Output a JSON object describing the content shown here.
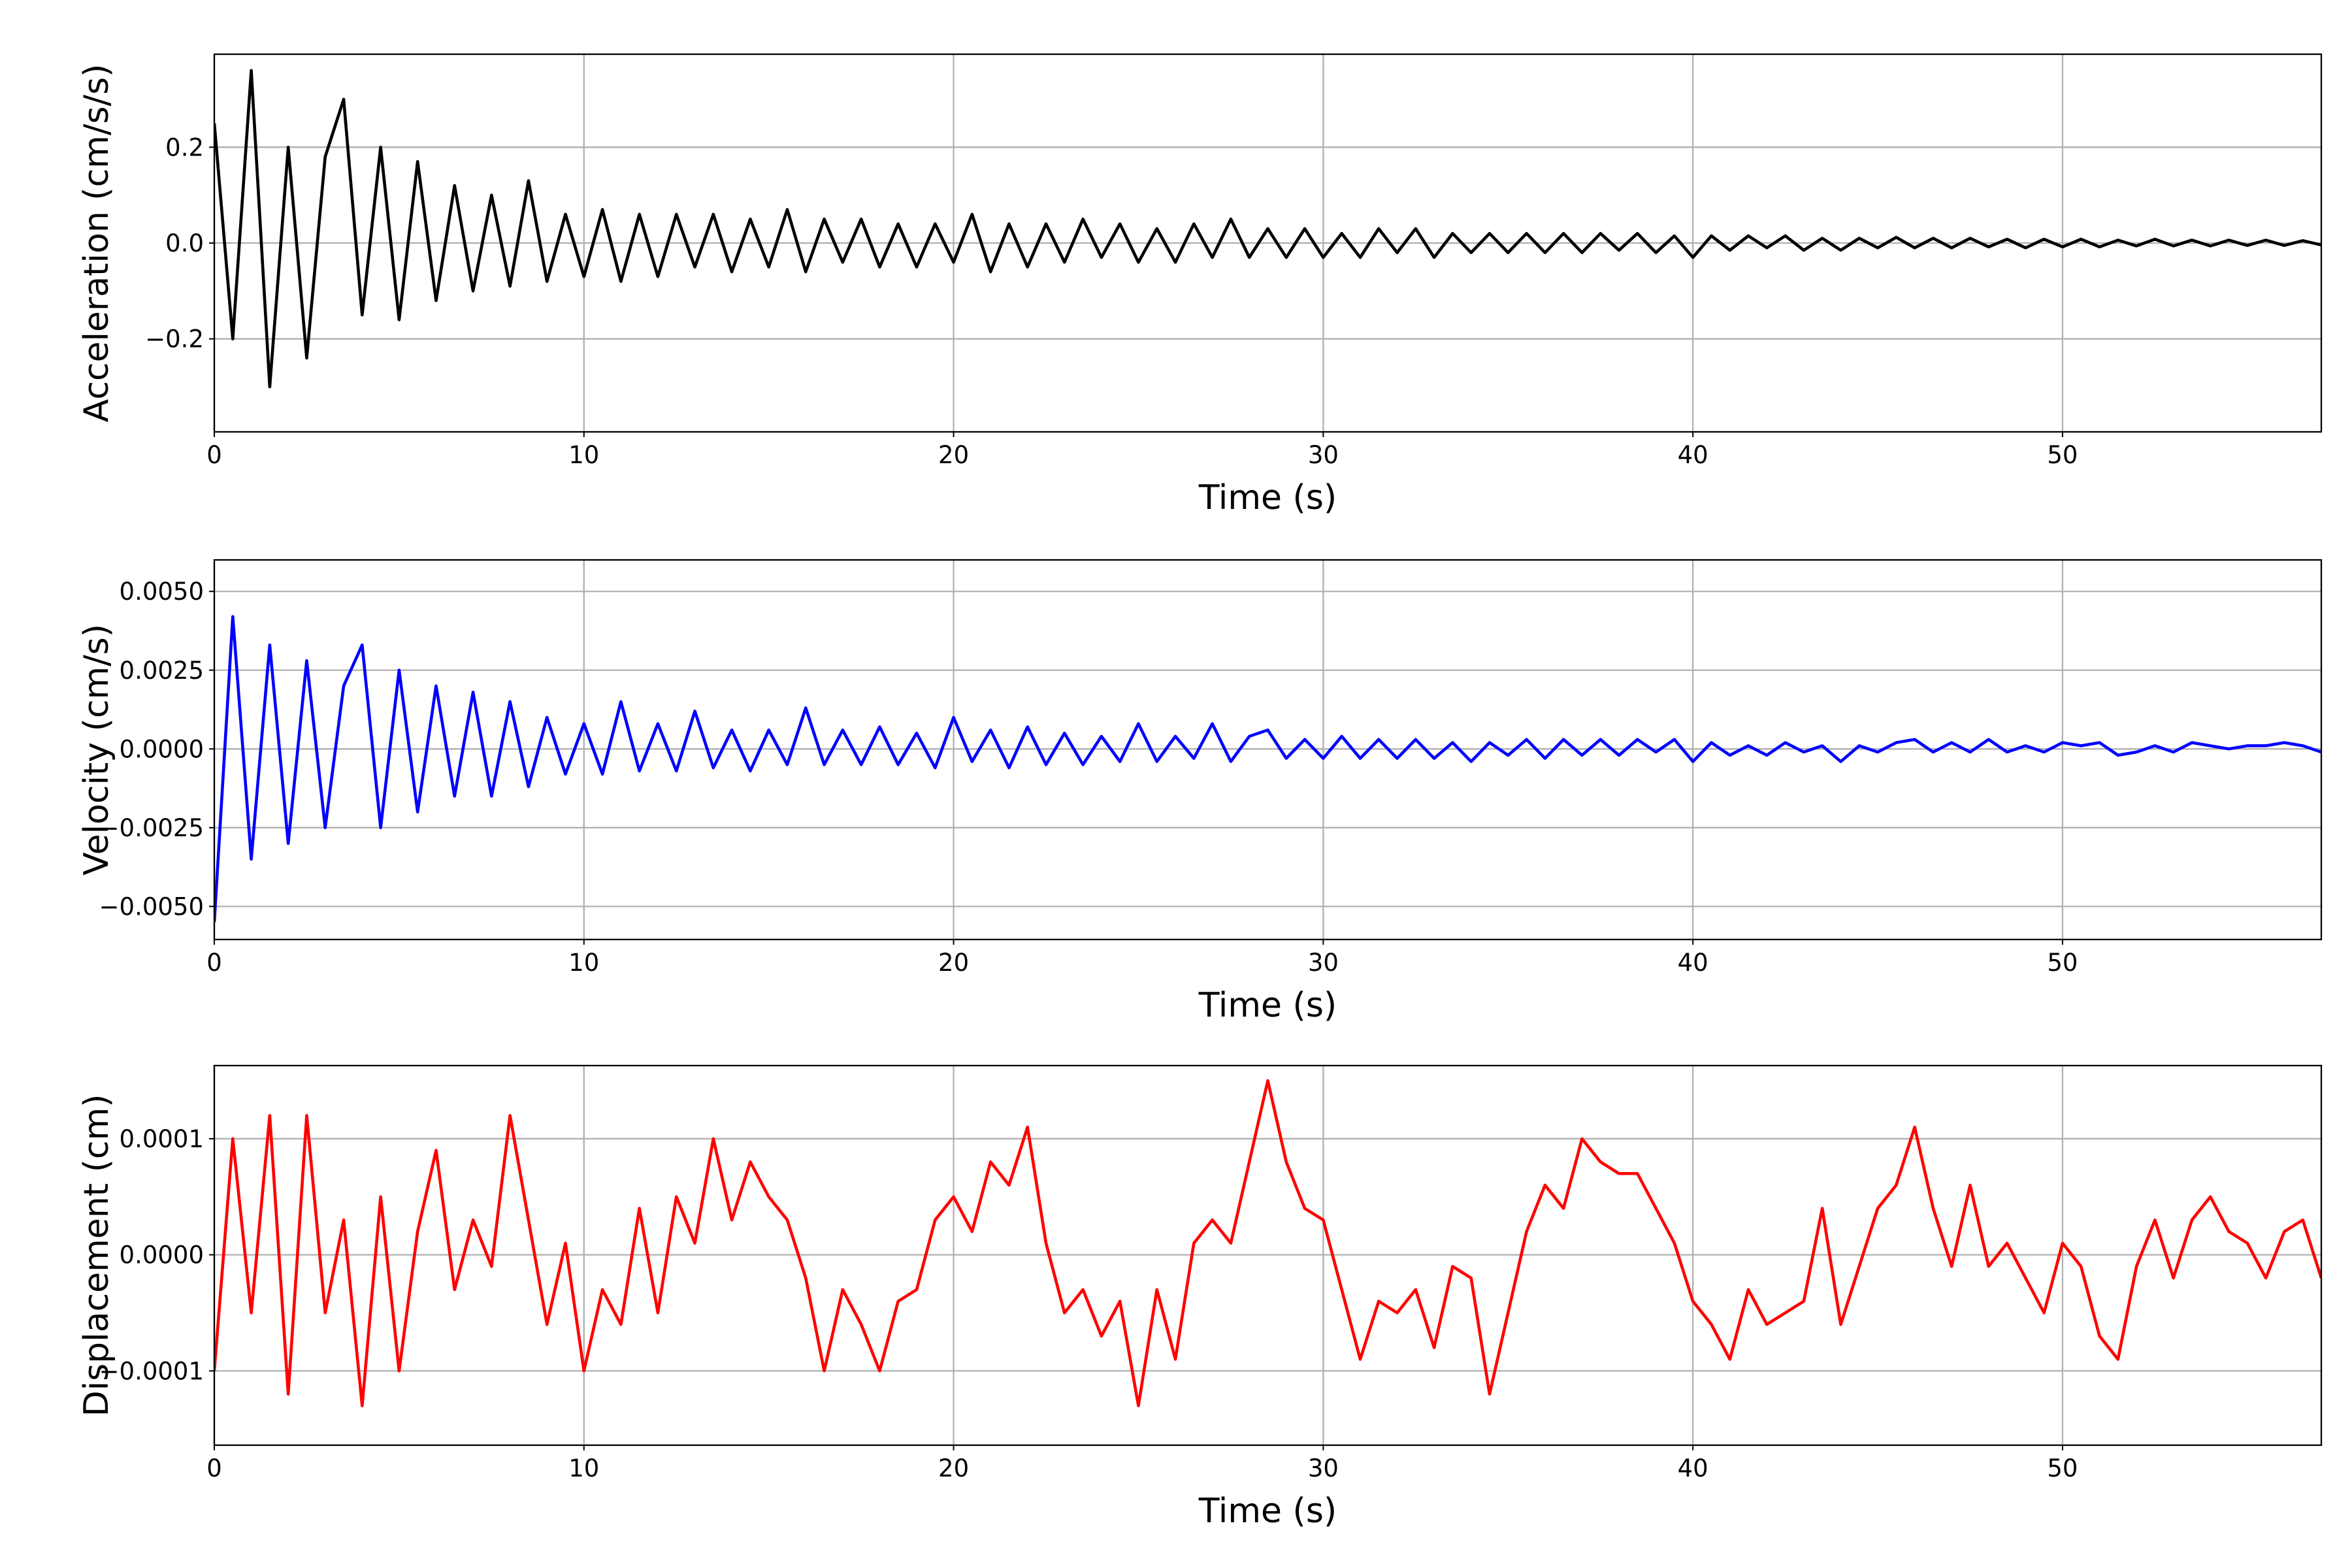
{
  "chart_data": [
    {
      "type": "line",
      "ylabel": "Acceleration (cm/s/s)",
      "xlabel": "Time (s)",
      "color": "#000000",
      "grid": true,
      "xlim": [
        0,
        57
      ],
      "xticks": [
        0,
        10,
        20,
        30,
        40,
        50
      ],
      "ylim": [
        -0.394,
        0.394
      ],
      "yticks": [
        {
          "value": -0.2,
          "label": "−0.2"
        },
        {
          "value": 0,
          "label": "0.0"
        },
        {
          "value": 0.2,
          "label": "0.2"
        }
      ],
      "x": [
        0,
        0.5,
        1,
        1.5,
        2,
        2.5,
        3,
        3.5,
        4,
        4.5,
        5,
        5.5,
        6,
        6.5,
        7,
        7.5,
        8,
        8.5,
        9,
        9.5,
        10,
        10.5,
        11,
        11.5,
        12,
        12.5,
        13,
        13.5,
        14,
        14.5,
        15,
        15.5,
        16,
        16.5,
        17,
        17.5,
        18,
        18.5,
        19,
        19.5,
        20,
        20.5,
        21,
        21.5,
        22,
        22.5,
        23,
        23.5,
        24,
        24.5,
        25,
        25.5,
        26,
        26.5,
        27,
        27.5,
        28,
        28.5,
        29,
        29.5,
        30,
        30.5,
        31,
        31.5,
        32,
        32.5,
        33,
        33.5,
        34,
        34.5,
        35,
        35.5,
        36,
        36.5,
        37,
        37.5,
        38,
        38.5,
        39,
        39.5,
        40,
        40.5,
        41,
        41.5,
        42,
        42.5,
        43,
        43.5,
        44,
        44.5,
        45,
        45.5,
        46,
        46.5,
        47,
        47.5,
        48,
        48.5,
        49,
        49.5,
        50,
        50.5,
        51,
        51.5,
        52,
        52.5,
        53,
        53.5,
        54,
        54.5,
        55,
        55.5,
        56,
        56.5,
        57
      ],
      "values": [
        0.25,
        -0.2,
        0.36,
        -0.3,
        0.2,
        -0.24,
        0.18,
        0.3,
        -0.15,
        0.2,
        -0.16,
        0.17,
        -0.12,
        0.12,
        -0.1,
        0.1,
        -0.09,
        0.13,
        -0.08,
        0.06,
        -0.07,
        0.07,
        -0.08,
        0.06,
        -0.07,
        0.06,
        -0.05,
        0.06,
        -0.06,
        0.05,
        -0.05,
        0.07,
        -0.06,
        0.05,
        -0.04,
        0.05,
        -0.05,
        0.04,
        -0.05,
        0.04,
        -0.04,
        0.06,
        -0.06,
        0.04,
        -0.05,
        0.04,
        -0.04,
        0.05,
        -0.03,
        0.04,
        -0.04,
        0.03,
        -0.04,
        0.04,
        -0.03,
        0.05,
        -0.03,
        0.03,
        -0.03,
        0.03,
        -0.03,
        0.02,
        -0.03,
        0.03,
        -0.02,
        0.03,
        -0.03,
        0.02,
        -0.02,
        0.02,
        -0.02,
        0.02,
        -0.02,
        0.02,
        -0.02,
        0.02,
        -0.015,
        0.02,
        -0.02,
        0.015,
        -0.03,
        0.015,
        -0.015,
        0.015,
        -0.01,
        0.015,
        -0.015,
        0.01,
        -0.015,
        0.01,
        -0.01,
        0.012,
        -0.01,
        0.01,
        -0.01,
        0.01,
        -0.008,
        0.008,
        -0.01,
        0.008,
        -0.008,
        0.008,
        -0.008,
        0.006,
        -0.006,
        0.008,
        -0.006,
        0.006,
        -0.006,
        0.006,
        -0.005,
        0.006,
        -0.005,
        0.005,
        -0.004
      ]
    },
    {
      "type": "line",
      "ylabel": "Velocity (cm/s)",
      "xlabel": "Time (s)",
      "color": "#0000ff",
      "grid": true,
      "xlim": [
        0,
        57
      ],
      "xticks": [
        0,
        10,
        20,
        30,
        40,
        50
      ],
      "ylim": [
        -0.00605,
        0.006
      ],
      "yticks": [
        {
          "value": -0.005,
          "label": "−0.0050"
        },
        {
          "value": -0.0025,
          "label": "−0.0025"
        },
        {
          "value": 0,
          "label": "0.0000"
        },
        {
          "value": 0.0025,
          "label": "0.0025"
        },
        {
          "value": 0.005,
          "label": "0.0050"
        }
      ],
      "x": [
        0,
        0.5,
        1,
        1.5,
        2,
        2.5,
        3,
        3.5,
        4,
        4.5,
        5,
        5.5,
        6,
        6.5,
        7,
        7.5,
        8,
        8.5,
        9,
        9.5,
        10,
        10.5,
        11,
        11.5,
        12,
        12.5,
        13,
        13.5,
        14,
        14.5,
        15,
        15.5,
        16,
        16.5,
        17,
        17.5,
        18,
        18.5,
        19,
        19.5,
        20,
        20.5,
        21,
        21.5,
        22,
        22.5,
        23,
        23.5,
        24,
        24.5,
        25,
        25.5,
        26,
        26.5,
        27,
        27.5,
        28,
        28.5,
        29,
        29.5,
        30,
        30.5,
        31,
        31.5,
        32,
        32.5,
        33,
        33.5,
        34,
        34.5,
        35,
        35.5,
        36,
        36.5,
        37,
        37.5,
        38,
        38.5,
        39,
        39.5,
        40,
        40.5,
        41,
        41.5,
        42,
        42.5,
        43,
        43.5,
        44,
        44.5,
        45,
        45.5,
        46,
        46.5,
        47,
        47.5,
        48,
        48.5,
        49,
        49.5,
        50,
        50.5,
        51,
        51.5,
        52,
        52.5,
        53,
        53.5,
        54,
        54.5,
        55,
        55.5,
        56,
        56.5,
        57
      ],
      "values": [
        -0.0055,
        0.0042,
        -0.0035,
        0.0033,
        -0.003,
        0.0028,
        -0.0025,
        0.002,
        0.0033,
        -0.0025,
        0.0025,
        -0.002,
        0.002,
        -0.0015,
        0.0018,
        -0.0015,
        0.0015,
        -0.0012,
        0.001,
        -0.0008,
        0.0008,
        -0.0008,
        0.0015,
        -0.0007,
        0.0008,
        -0.0007,
        0.0012,
        -0.0006,
        0.0006,
        -0.0007,
        0.0006,
        -0.0005,
        0.0013,
        -0.0005,
        0.0006,
        -0.0005,
        0.0007,
        -0.0005,
        0.0005,
        -0.0006,
        0.001,
        -0.0004,
        0.0006,
        -0.0006,
        0.0007,
        -0.0005,
        0.0005,
        -0.0005,
        0.0004,
        -0.0004,
        0.0008,
        -0.0004,
        0.0004,
        -0.0003,
        0.0008,
        -0.0004,
        0.0004,
        0.0006,
        -0.0003,
        0.0003,
        -0.0003,
        0.0004,
        -0.0003,
        0.0003,
        -0.0003,
        0.0003,
        -0.0003,
        0.0002,
        -0.0004,
        0.0002,
        -0.0002,
        0.0003,
        -0.0003,
        0.0003,
        -0.0002,
        0.0003,
        -0.0002,
        0.0003,
        -0.0001,
        0.0003,
        -0.0004,
        0.0002,
        -0.0002,
        0.0001,
        -0.0002,
        0.0002,
        -0.0001,
        0.0001,
        -0.0004,
        0.0001,
        -0.0001,
        0.0002,
        0.0003,
        -0.0001,
        0.0002,
        -0.0001,
        0.0003,
        -0.0001,
        0.0001,
        -0.0001,
        0.0002,
        0.0001,
        0.0002,
        -0.0002,
        -0.0001,
        0.0001,
        -0.0001,
        0.0002,
        0.0001,
        0,
        0.0001,
        0.0001,
        0.0002,
        0.0001,
        -0.0001
      ]
    },
    {
      "type": "line",
      "ylabel": "Displacement (cm)",
      "xlabel": "Time (s)",
      "color": "#ff0000",
      "grid": true,
      "xlim": [
        0,
        57
      ],
      "xticks": [
        0,
        10,
        20,
        30,
        40,
        50
      ],
      "ylim": [
        -0.000164,
        0.000163
      ],
      "yticks": [
        {
          "value": -0.0001,
          "label": "−0.0001"
        },
        {
          "value": 0,
          "label": "0.0000"
        },
        {
          "value": 0.0001,
          "label": "0.0001"
        }
      ],
      "x": [
        0,
        0.5,
        1,
        1.5,
        2,
        2.5,
        3,
        3.5,
        4,
        4.5,
        5,
        5.5,
        6,
        6.5,
        7,
        7.5,
        8,
        8.5,
        9,
        9.5,
        10,
        10.5,
        11,
        11.5,
        12,
        12.5,
        13,
        13.5,
        14,
        14.5,
        15,
        15.5,
        16,
        16.5,
        17,
        17.5,
        18,
        18.5,
        19,
        19.5,
        20,
        20.5,
        21,
        21.5,
        22,
        22.5,
        23,
        23.5,
        24,
        24.5,
        25,
        25.5,
        26,
        26.5,
        27,
        27.5,
        28,
        28.5,
        29,
        29.5,
        30,
        30.5,
        31,
        31.5,
        32,
        32.5,
        33,
        33.5,
        34,
        34.5,
        35,
        35.5,
        36,
        36.5,
        37,
        37.5,
        38,
        38.5,
        39,
        39.5,
        40,
        40.5,
        41,
        41.5,
        42,
        42.5,
        43,
        43.5,
        44,
        44.5,
        45,
        45.5,
        46,
        46.5,
        47,
        47.5,
        48,
        48.5,
        49,
        49.5,
        50,
        50.5,
        51,
        51.5,
        52,
        52.5,
        53,
        53.5,
        54,
        54.5,
        55,
        55.5,
        56,
        56.5,
        57
      ],
      "values": [
        -0.0001,
        0.0001,
        -5e-05,
        0.00012,
        -0.00012,
        0.00012,
        -5e-05,
        3e-05,
        -0.00013,
        5e-05,
        -0.0001,
        2e-05,
        9e-05,
        -3e-05,
        3e-05,
        -1e-05,
        0.00012,
        3e-05,
        -6e-05,
        1e-05,
        -0.0001,
        -3e-05,
        -6e-05,
        4e-05,
        -5e-05,
        5e-05,
        1e-05,
        0.0001,
        3e-05,
        8e-05,
        5e-05,
        3e-05,
        -2e-05,
        -0.0001,
        -3e-05,
        -6e-05,
        -0.0001,
        -4e-05,
        -3e-05,
        3e-05,
        5e-05,
        2e-05,
        8e-05,
        6e-05,
        0.00011,
        1e-05,
        -5e-05,
        -3e-05,
        -7e-05,
        -4e-05,
        -0.00013,
        -3e-05,
        -9e-05,
        1e-05,
        3e-05,
        1e-05,
        8e-05,
        0.00015,
        8e-05,
        4e-05,
        3e-05,
        -3e-05,
        -9e-05,
        -4e-05,
        -5e-05,
        -3e-05,
        -8e-05,
        -1e-05,
        -2e-05,
        -0.00012,
        -5e-05,
        2e-05,
        6e-05,
        4e-05,
        0.0001,
        8e-05,
        7e-05,
        7e-05,
        4e-05,
        1e-05,
        -4e-05,
        -6e-05,
        -9e-05,
        -3e-05,
        -6e-05,
        -5e-05,
        -4e-05,
        4e-05,
        -6e-05,
        -1e-05,
        4e-05,
        6e-05,
        0.00011,
        4e-05,
        -1e-05,
        6e-05,
        -1e-05,
        1e-05,
        -2e-05,
        -5e-05,
        1e-05,
        -1e-05,
        -7e-05,
        -9e-05,
        -1e-05,
        3e-05,
        -2e-05,
        3e-05,
        5e-05,
        2e-05,
        1e-05,
        -2e-05,
        2e-05,
        3e-05,
        -2e-05
      ]
    }
  ]
}
